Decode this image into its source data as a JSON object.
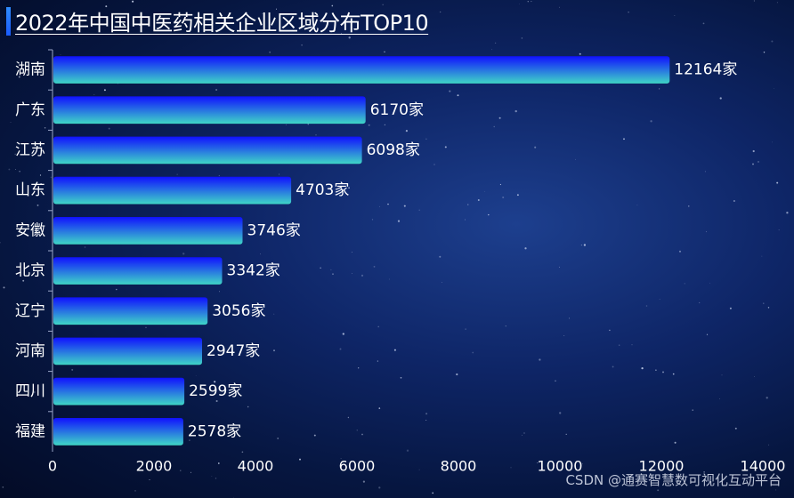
{
  "title": "2022年中国中医药相关企业区域分布TOP10",
  "watermark": "CSDN @通赛智慧数可视化互动平台",
  "colors": {
    "bar_top": "#1010ff",
    "bar_bottom": "#3fd6c6",
    "text": "#ffffff",
    "axis": "#9aa6c8"
  },
  "chart_data": {
    "type": "bar",
    "orientation": "horizontal",
    "categories": [
      "湖南",
      "广东",
      "江苏",
      "山东",
      "安徽",
      "北京",
      "辽宁",
      "河南",
      "四川",
      "福建"
    ],
    "values": [
      12164,
      6170,
      6098,
      4703,
      3746,
      3342,
      3056,
      2947,
      2599,
      2578
    ],
    "value_suffix": "家",
    "xlim": [
      0,
      14000
    ],
    "xticks": [
      "0",
      "2000",
      "4000",
      "6000",
      "8000",
      "10000",
      "12000",
      "14000"
    ],
    "grid": false,
    "legend": false
  }
}
